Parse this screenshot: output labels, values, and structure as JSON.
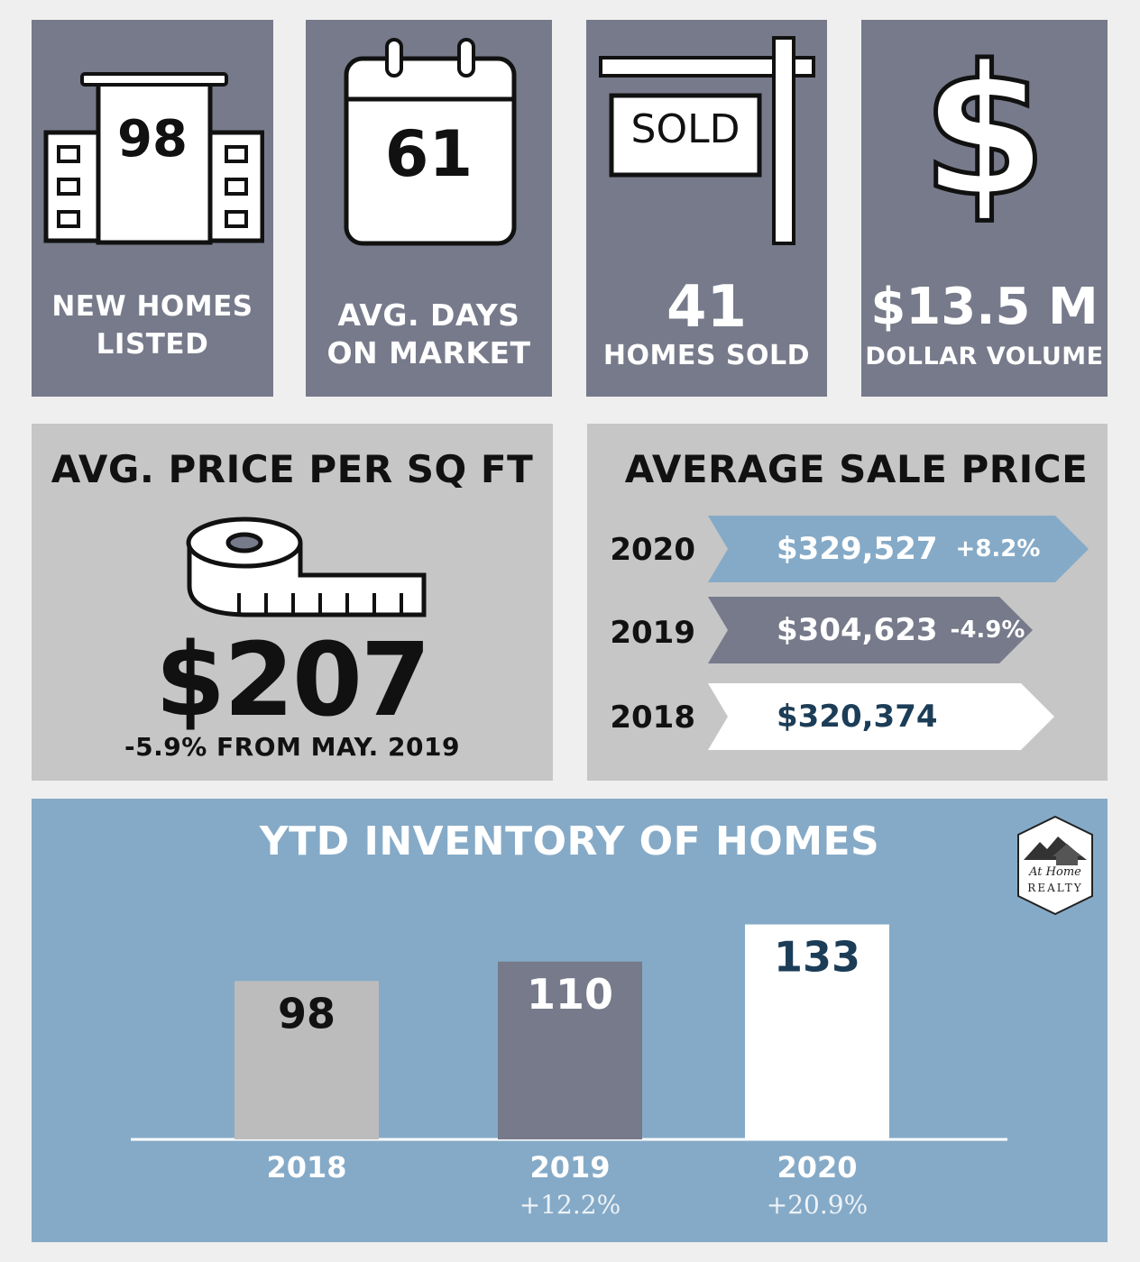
{
  "stats": {
    "new_homes": {
      "value": "98",
      "label_line1": "NEW HOMES",
      "label_line2": "LISTED",
      "icon": "buildings-icon"
    },
    "days_on_market": {
      "value": "61",
      "label_line1": "AVG. DAYS",
      "label_line2": "ON MARKET",
      "icon": "calendar-icon"
    },
    "homes_sold": {
      "sign_text": "SOLD",
      "value": "41",
      "label": "HOMES SOLD",
      "icon": "sold-sign-icon"
    },
    "dollar_volume": {
      "value": "$13.5 M",
      "label": "DOLLAR VOLUME",
      "icon": "dollar-icon"
    }
  },
  "price_sqft": {
    "title": "AVG. PRICE PER SQ FT",
    "value": "$207",
    "change": "-5.9% FROM MAY. 2019",
    "icon": "tape-measure-icon"
  },
  "avg_sale_price": {
    "title": "AVERAGE SALE PRICE",
    "rows": [
      {
        "year": "2020",
        "price": "$329,527",
        "change": "+8.2%"
      },
      {
        "year": "2019",
        "price": "$304,623",
        "change": "-4.9%"
      },
      {
        "year": "2018",
        "price": "$320,374",
        "change": ""
      }
    ]
  },
  "inventory": {
    "title": "YTD INVENTORY OF HOMES",
    "logo": {
      "line1": "At Home",
      "line2": "REALTY"
    }
  },
  "colors": {
    "slate": "#767a8a",
    "grey": "#c6c6c6",
    "blue": "#85aac7",
    "navy": "#1c3d57"
  },
  "chart_data": {
    "type": "bar",
    "title": "YTD INVENTORY OF HOMES",
    "categories": [
      "2018",
      "2019",
      "2020"
    ],
    "values": [
      98,
      110,
      133
    ],
    "changes": [
      "",
      "+12.2%",
      "+20.9%"
    ],
    "bar_colors": [
      "#bcbcbc",
      "#767a8a",
      "#ffffff"
    ],
    "label_colors": [
      "#111111",
      "#ffffff",
      "#1c3d57"
    ],
    "ylim": [
      0,
      145
    ],
    "grid": false
  }
}
